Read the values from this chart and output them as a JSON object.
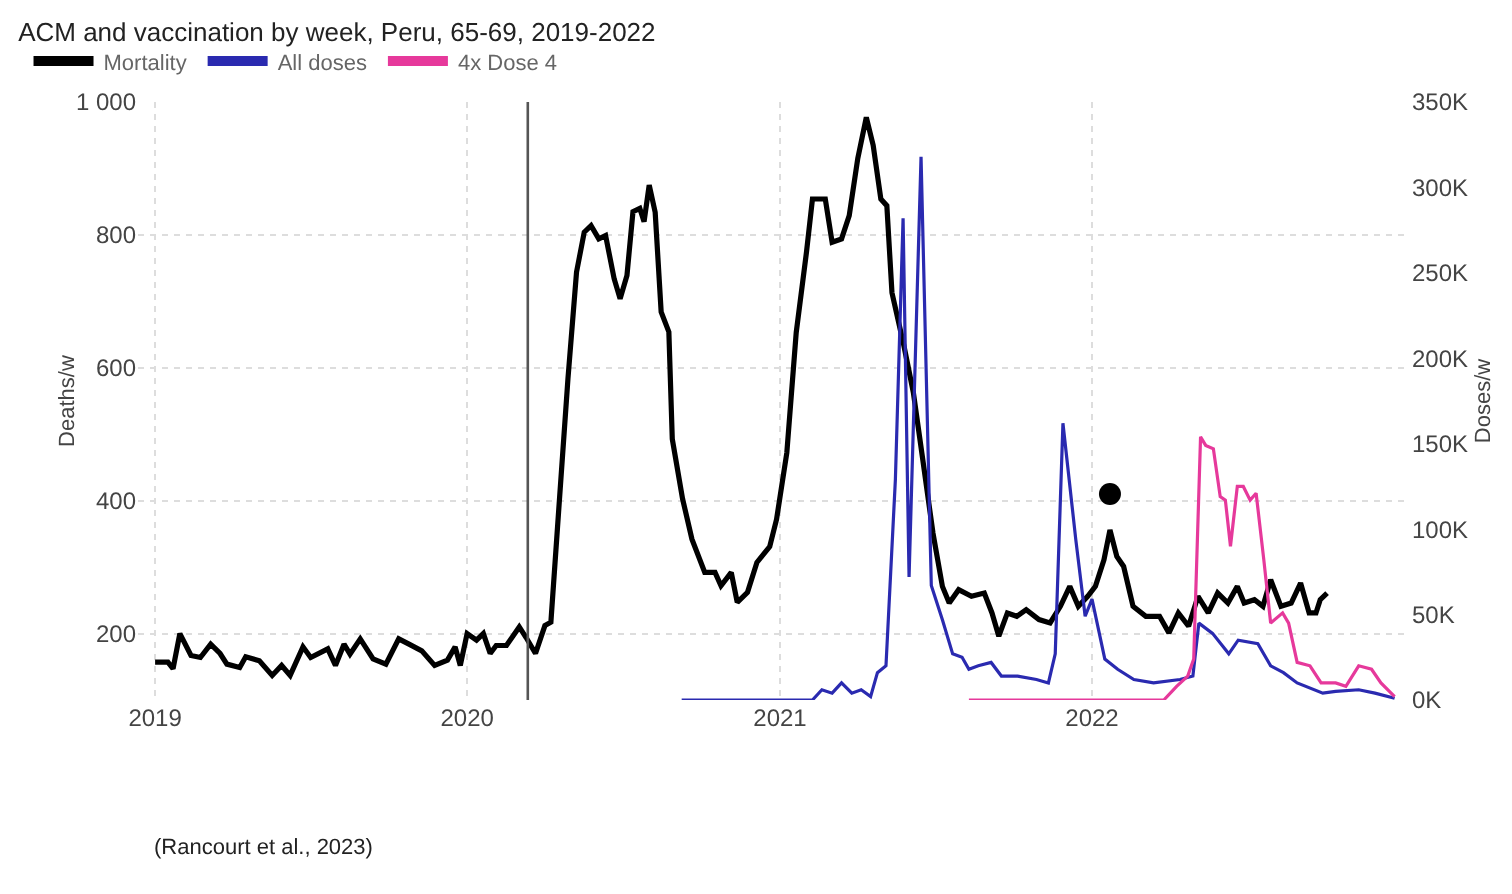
{
  "chart_data": {
    "type": "line",
    "title": "ACM and vaccination by week, Peru, 65-69, 2019-2022",
    "ylabel": "Deaths/w",
    "y2label": "Doses/w",
    "xlim": [
      "2018-12-12",
      "2023-01-08"
    ],
    "xticks": [
      {
        "value": "2019-01-01",
        "label": "2019"
      },
      {
        "value": "2020-01-01",
        "label": "2020"
      },
      {
        "value": "2021-01-01",
        "label": "2021"
      },
      {
        "value": "2022-01-01",
        "label": "2022"
      }
    ],
    "ylim": [
      100,
      1000
    ],
    "yticks": [
      200,
      400,
      600,
      800,
      {
        "value": 1000,
        "label": "1 000"
      }
    ],
    "y2lim": [
      0,
      350000
    ],
    "y2ticks": [
      {
        "value": 0,
        "label": "0K"
      },
      {
        "value": 50000,
        "label": "50K"
      },
      {
        "value": 100000,
        "label": "100K"
      },
      {
        "value": 150000,
        "label": "150K"
      },
      {
        "value": 200000,
        "label": "200K"
      },
      {
        "value": 250000,
        "label": "250K"
      },
      {
        "value": 300000,
        "label": "300K"
      },
      {
        "value": 350000,
        "label": "350K"
      }
    ],
    "grid": true,
    "legend": "top left",
    "marker": "none",
    "line_style": "solid",
    "ref_lines": [
      {
        "axis": "x",
        "value": "2020-03-12",
        "color": "#555555"
      }
    ],
    "annotations": [
      "(Rancourt et al., 2023)"
    ],
    "series": [
      {
        "name": "Mortality",
        "color": "#000000",
        "x": [
          "2019-01-01",
          "2019-01-16",
          "2019-01-22",
          "2019-01-30",
          "2019-02-12",
          "2019-02-23",
          "2019-03-07",
          "2019-03-18",
          "2019-03-26",
          "2019-04-10",
          "2019-04-17",
          "2019-05-03",
          "2019-05-18",
          "2019-05-29",
          "2019-06-08",
          "2019-06-23",
          "2019-07-02",
          "2019-07-22",
          "2019-07-31",
          "2019-08-10",
          "2019-08-17",
          "2019-08-29",
          "2019-09-13",
          "2019-09-28",
          "2019-10-13",
          "2019-10-25",
          "2019-11-09",
          "2019-11-24",
          "2019-12-09",
          "2019-12-18",
          "2019-12-24",
          "2020-01-01",
          "2020-01-12",
          "2020-01-20",
          "2020-01-28",
          "2020-02-04",
          "2020-02-16",
          "2020-03-02",
          "2020-03-10",
          "2020-03-21",
          "2020-04-01",
          "2020-04-08",
          "2020-04-17",
          "2020-04-28",
          "2020-05-08",
          "2020-05-17",
          "2020-05-25",
          "2020-06-03",
          "2020-06-11",
          "2020-06-21",
          "2020-06-28",
          "2020-07-06",
          "2020-07-13",
          "2020-07-21",
          "2020-07-26",
          "2020-08-01",
          "2020-08-08",
          "2020-08-15",
          "2020-08-24",
          "2020-08-28",
          "2020-09-09",
          "2020-09-20",
          "2020-10-05",
          "2020-10-17",
          "2020-10-24",
          "2020-11-05",
          "2020-11-12",
          "2020-11-24",
          "2020-12-05",
          "2020-12-20",
          "2020-12-28",
          "2021-01-09",
          "2021-01-20",
          "2021-02-01",
          "2021-02-08",
          "2021-02-23",
          "2021-03-03",
          "2021-03-14",
          "2021-03-23",
          "2021-04-02",
          "2021-04-12",
          "2021-04-20",
          "2021-04-29",
          "2021-05-06",
          "2021-05-12",
          "2021-05-26",
          "2021-06-06",
          "2021-06-17",
          "2021-06-29",
          "2021-07-10",
          "2021-07-18",
          "2021-07-29",
          "2021-08-13",
          "2021-08-28",
          "2021-09-06",
          "2021-09-14",
          "2021-09-24",
          "2021-10-05",
          "2021-10-16",
          "2021-10-31",
          "2021-11-13",
          "2021-11-25",
          "2021-12-06",
          "2021-12-16",
          "2021-12-27",
          "2022-01-05",
          "2022-01-15",
          "2022-01-22",
          "2022-01-30",
          "2022-02-07",
          "2022-02-18",
          "2022-03-05",
          "2022-03-21",
          "2022-04-01",
          "2022-04-12",
          "2022-04-24",
          "2022-05-05",
          "2022-05-17",
          "2022-05-28",
          "2022-06-09",
          "2022-06-20",
          "2022-06-28",
          "2022-07-10",
          "2022-07-20",
          "2022-07-29",
          "2022-08-10",
          "2022-08-22",
          "2022-09-02",
          "2022-09-12",
          "2022-09-20",
          "2022-09-25",
          "2022-10-03"
        ],
        "values": [
          157,
          157,
          147,
          200,
          167,
          164,
          184,
          170,
          154,
          149,
          165,
          159,
          137,
          152,
          137,
          180,
          164,
          177,
          152,
          184,
          169,
          192,
          162,
          154,
          192,
          184,
          174,
          152,
          160,
          180,
          152,
          200,
          190,
          200,
          170,
          182,
          182,
          210,
          194,
          170,
          212,
          217,
          383,
          584,
          744,
          804,
          814,
          794,
          799,
          734,
          704,
          739,
          835,
          840,
          820,
          875,
          834,
          684,
          654,
          493,
          403,
          342,
          292,
          292,
          272,
          292,
          247,
          262,
          307,
          331,
          372,
          472,
          653,
          774,
          854,
          854,
          789,
          794,
          829,
          915,
          977,
          935,
          854,
          844,
          713,
          633,
          563,
          462,
          351,
          271,
          246,
          266,
          256,
          261,
          231,
          196,
          231,
          226,
          236,
          221,
          216,
          241,
          271,
          241,
          256,
          271,
          311,
          356,
          316,
          301,
          241,
          226,
          226,
          201,
          231,
          211,
          256,
          231,
          261,
          246,
          271,
          246,
          251,
          241,
          281,
          241,
          246,
          276,
          231,
          231,
          251,
          261
        ]
      },
      {
        "name": "All doses",
        "color": "#2a2ab0",
        "axis": "y2",
        "x": [
          "2020-09-08",
          "2021-02-08",
          "2021-02-19",
          "2021-03-03",
          "2021-03-14",
          "2021-03-26",
          "2021-04-06",
          "2021-04-17",
          "2021-04-25",
          "2021-05-05",
          "2021-05-16",
          "2021-05-25",
          "2021-06-01",
          "2021-06-15",
          "2021-06-27",
          "2021-07-10",
          "2021-07-22",
          "2021-08-02",
          "2021-08-10",
          "2021-08-21",
          "2021-09-05",
          "2021-09-17",
          "2021-10-06",
          "2021-10-28",
          "2021-11-11",
          "2021-11-19",
          "2021-11-28",
          "2021-12-13",
          "2021-12-24",
          "2022-01-01",
          "2022-01-16",
          "2022-01-31",
          "2022-02-19",
          "2022-03-14",
          "2022-04-14",
          "2022-04-29",
          "2022-05-06",
          "2022-05-22",
          "2022-06-10",
          "2022-06-21",
          "2022-07-14",
          "2022-07-29",
          "2022-08-13",
          "2022-08-29",
          "2022-09-28",
          "2022-10-13",
          "2022-11-09",
          "2022-11-28",
          "2022-12-21"
        ],
        "values": [
          0,
          0,
          6000,
          4000,
          10000,
          4000,
          6000,
          2000,
          16000,
          20000,
          129000,
          282000,
          72000,
          318000,
          67000,
          47000,
          27000,
          25000,
          18000,
          20000,
          22000,
          14000,
          14000,
          12000,
          10000,
          27000,
          162000,
          94000,
          49000,
          59000,
          24000,
          18000,
          12000,
          10000,
          12000,
          14000,
          45000,
          39000,
          27000,
          35000,
          33000,
          20000,
          16000,
          10000,
          4000,
          5000,
          6000,
          4000,
          1000
        ]
      },
      {
        "name": "4x Dose 4",
        "color": "#e6399b",
        "axis": "y2",
        "x": [
          "2021-08-10",
          "2022-03-26",
          "2022-04-10",
          "2022-04-23",
          "2022-04-30",
          "2022-05-08",
          "2022-05-14",
          "2022-05-23",
          "2022-05-31",
          "2022-06-06",
          "2022-06-12",
          "2022-06-20",
          "2022-06-27",
          "2022-07-05",
          "2022-07-12",
          "2022-07-21",
          "2022-07-29",
          "2022-08-12",
          "2022-08-19",
          "2022-08-29",
          "2022-09-13",
          "2022-09-26",
          "2022-10-13",
          "2022-10-25",
          "2022-11-09",
          "2022-11-24",
          "2022-12-05",
          "2022-12-21"
        ],
        "values": [
          0,
          0,
          8000,
          14000,
          24000,
          154000,
          149000,
          147000,
          119000,
          117000,
          90000,
          125000,
          125000,
          117000,
          121000,
          82000,
          45000,
          51000,
          45000,
          22000,
          20000,
          10000,
          10000,
          8000,
          20000,
          18000,
          10000,
          2000
        ]
      },
      {
        "type": "scatter",
        "marker": "circle",
        "color": "#000000",
        "x": [
          "2022-01-22"
        ],
        "values": [
          410
        ]
      }
    ]
  }
}
